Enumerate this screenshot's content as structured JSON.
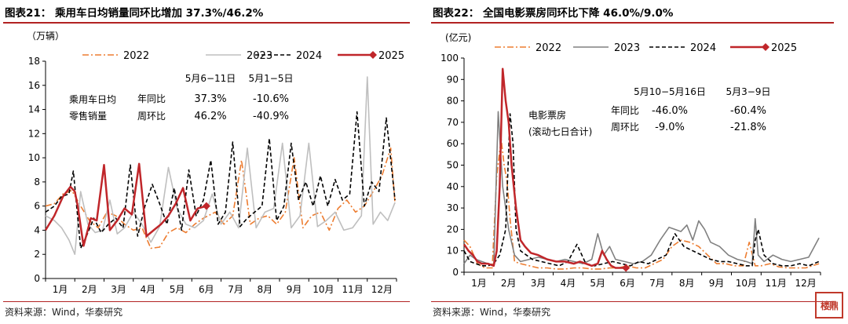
{
  "chart_data": [
    {
      "type": "line",
      "title": "图表21：  乘用车日均销量同环比增加 37.3%/46.2%",
      "unit_label": "（万辆）",
      "x_categories": [
        "1月",
        "2月",
        "3月",
        "4月",
        "5月",
        "6月",
        "7月",
        "8月",
        "9月",
        "10月",
        "11月",
        "12月"
      ],
      "ylim": [
        0,
        18
      ],
      "yticks": [
        0,
        2,
        4,
        6,
        8,
        10,
        12,
        14,
        16,
        18
      ],
      "legend_position": "top",
      "series": [
        {
          "name": "2022",
          "color": "#ed7d31",
          "dash": "dashdot",
          "x": [
            0,
            0.3,
            0.6,
            0.9,
            1.2,
            1.5,
            1.8,
            2.1,
            2.4,
            2.7,
            3.0,
            3.3,
            3.6,
            3.9,
            4.2,
            4.5,
            4.8,
            5.1,
            5.4,
            5.8,
            6.1,
            6.4,
            6.7,
            7.0,
            7.3,
            7.6,
            7.9,
            8.2,
            8.5,
            8.8,
            9.1,
            9.4,
            9.7,
            10.0,
            10.3,
            10.6,
            10.9,
            11.2,
            11.5,
            11.8,
            11.95
          ],
          "y": [
            6,
            6.2,
            7,
            7.3,
            6,
            4.8,
            4.2,
            5.5,
            5.2,
            4.5,
            4,
            4.2,
            2.5,
            2.6,
            3.8,
            4.2,
            3.8,
            4.5,
            5,
            5.5,
            4.5,
            5.2,
            9.8,
            4.5,
            5,
            5.2,
            4.5,
            5.5,
            10,
            4.2,
            5.2,
            5.5,
            4,
            5.8,
            6.5,
            5.5,
            6,
            7.2,
            8.5,
            10.8,
            6.2
          ]
        },
        {
          "name": "2023",
          "color": "#bfbfbf",
          "dash": "solid",
          "x": [
            0,
            0.3,
            0.55,
            0.8,
            1.0,
            1.2,
            1.45,
            1.7,
            1.95,
            2.2,
            2.45,
            2.7,
            3.0,
            3.3,
            3.6,
            3.9,
            4.2,
            4.5,
            4.8,
            5.1,
            5.4,
            5.7,
            6.0,
            6.3,
            6.6,
            6.9,
            7.2,
            7.5,
            7.8,
            8.1,
            8.4,
            8.7,
            9.0,
            9.3,
            9.6,
            9.9,
            10.2,
            10.5,
            10.8,
            11.0,
            11.2,
            11.45,
            11.7,
            11.95
          ],
          "y": [
            5.2,
            4.8,
            4.2,
            3.2,
            2,
            7.2,
            4.5,
            3.8,
            4,
            6.5,
            3.7,
            4.2,
            5.5,
            4.5,
            3,
            4.3,
            9.2,
            5.8,
            4.5,
            4.2,
            4.8,
            7,
            4.5,
            5.5,
            4.2,
            10.8,
            4.2,
            5.5,
            5.8,
            11.2,
            4.2,
            5.2,
            11.2,
            4.3,
            4.8,
            5.5,
            4,
            4.2,
            5.2,
            16.7,
            4.5,
            5.5,
            4.8,
            6.3
          ]
        },
        {
          "name": "2024",
          "color": "#000000",
          "dash": "dashed",
          "x": [
            0,
            0.3,
            0.55,
            0.8,
            0.95,
            1.2,
            1.4,
            1.65,
            1.9,
            2.15,
            2.4,
            2.65,
            2.9,
            3.15,
            3.4,
            3.65,
            3.9,
            4.15,
            4.4,
            4.65,
            4.9,
            5.15,
            5.4,
            5.65,
            5.9,
            6.15,
            6.4,
            6.65,
            6.9,
            7.15,
            7.4,
            7.65,
            7.9,
            8.15,
            8.4,
            8.65,
            8.9,
            9.15,
            9.4,
            9.65,
            9.9,
            10.15,
            10.4,
            10.65,
            10.9,
            11.15,
            11.4,
            11.65,
            11.95
          ],
          "y": [
            5.5,
            6,
            6.8,
            7,
            8.9,
            2.5,
            3.5,
            5,
            3.8,
            4.5,
            5,
            4.2,
            9.4,
            3.5,
            6,
            7.8,
            6.2,
            4.5,
            7.5,
            4,
            9,
            5.2,
            6.5,
            9.8,
            4.5,
            5.5,
            11.3,
            4.3,
            5,
            5.5,
            6,
            11.6,
            4.8,
            6,
            11.2,
            6.5,
            8,
            6,
            8.5,
            6,
            8.2,
            6.5,
            7,
            13.8,
            6,
            8,
            7.2,
            13.3,
            6.5
          ]
        },
        {
          "name": "2025",
          "color": "#c0262a",
          "dash": "solid",
          "x": [
            0,
            0.3,
            0.6,
            0.85,
            1.0,
            1.1,
            1.3,
            1.55,
            1.75,
            2.0,
            2.2,
            2.45,
            2.7,
            2.95,
            3.2,
            3.45,
            3.7,
            3.95,
            4.2,
            4.45,
            4.7,
            4.95,
            5.2,
            5.5
          ],
          "y": [
            4,
            5.2,
            6.8,
            7.6,
            7.2,
            6,
            2.7,
            5,
            4.8,
            9.4,
            4,
            4.8,
            5.8,
            5.3,
            9.5,
            3.5,
            4,
            4.5,
            5.2,
            6.2,
            7.5,
            4.8,
            5.8,
            6
          ]
        }
      ],
      "annotations": {
        "label_left": [
          "乘用车日均",
          "零售销量"
        ],
        "period_1": "5月6−11日",
        "period_2": "5月1−5日",
        "row_1_label": "年同比",
        "row_2_label": "周环比",
        "yoy_1": "37.3%",
        "yoy_2": "-10.6%",
        "wow_1": "46.2%",
        "wow_2": "-40.9%"
      },
      "source": "资料来源：Wind，华泰研究"
    },
    {
      "type": "line",
      "title": "图表22：  全国电影票房同环比下降 46.0%/9.0%",
      "unit_label": "(亿元)",
      "x_categories": [
        "1月",
        "2月",
        "3月",
        "4月",
        "5月",
        "6月",
        "7月",
        "8月",
        "9月",
        "10月",
        "11月",
        "12月"
      ],
      "ylim": [
        0,
        100
      ],
      "yticks": [
        0,
        10,
        20,
        30,
        40,
        50,
        60,
        70,
        80,
        90,
        100
      ],
      "legend_position": "top",
      "series": [
        {
          "name": "2022",
          "color": "#ed7d31",
          "dash": "dashdot",
          "x": [
            0,
            0.2,
            0.45,
            0.7,
            0.95,
            1.1,
            1.25,
            1.35,
            1.45,
            1.55,
            1.7,
            1.9,
            2.2,
            2.5,
            2.8,
            3.1,
            3.4,
            3.7,
            4.0,
            4.3,
            4.6,
            4.9,
            5.2,
            5.5,
            5.8,
            6.1,
            6.4,
            6.7,
            7.0,
            7.3,
            7.6,
            7.9,
            8.2,
            8.5,
            8.8,
            9.1,
            9.4,
            9.6,
            9.8,
            10.0,
            10.3,
            10.6,
            10.9,
            11.2,
            11.5,
            11.95
          ],
          "y": [
            15,
            12,
            4,
            2,
            2,
            45,
            62,
            50,
            42,
            25,
            5,
            4,
            3,
            2,
            2,
            1.5,
            1.5,
            2,
            2,
            1.5,
            1.5,
            2,
            2,
            3,
            2,
            2,
            4,
            6,
            12,
            15,
            14,
            12,
            8,
            4,
            4,
            3,
            3,
            14,
            3,
            3,
            4,
            2.5,
            2,
            2,
            2,
            4
          ]
        },
        {
          "name": "2023",
          "color": "#808080",
          "dash": "solid",
          "x": [
            0,
            0.2,
            0.4,
            0.6,
            0.8,
            1.0,
            1.15,
            1.3,
            1.5,
            1.7,
            1.9,
            2.2,
            2.5,
            2.8,
            3.1,
            3.4,
            3.7,
            4.0,
            4.3,
            4.5,
            4.7,
            4.9,
            5.1,
            5.4,
            5.7,
            6.0,
            6.3,
            6.6,
            6.9,
            7.1,
            7.3,
            7.5,
            7.7,
            7.9,
            8.1,
            8.3,
            8.6,
            8.9,
            9.2,
            9.5,
            9.7,
            9.8,
            9.9,
            10.1,
            10.4,
            10.7,
            11.0,
            11.3,
            11.6,
            11.95
          ],
          "y": [
            4,
            8,
            6,
            5,
            4,
            3,
            75,
            40,
            20,
            8,
            5,
            6,
            7,
            6,
            5,
            6,
            5,
            4,
            6,
            18,
            8,
            12,
            6,
            5,
            4,
            5,
            8,
            15,
            21,
            20,
            19,
            22,
            15,
            24,
            20,
            14,
            12,
            8,
            6,
            5,
            4,
            25,
            8,
            5,
            8,
            6,
            5,
            6,
            7,
            16
          ]
        },
        {
          "name": "2024",
          "color": "#000000",
          "dash": "dashed",
          "x": [
            0,
            0.2,
            0.4,
            0.6,
            0.8,
            1.0,
            1.2,
            1.4,
            1.55,
            1.65,
            1.75,
            1.9,
            2.1,
            2.3,
            2.6,
            2.9,
            3.2,
            3.5,
            3.8,
            4.1,
            4.4,
            4.7,
            5.0,
            5.3,
            5.6,
            5.9,
            6.2,
            6.5,
            6.8,
            7.1,
            7.4,
            7.7,
            8.0,
            8.3,
            8.6,
            8.9,
            9.2,
            9.5,
            9.7,
            9.8,
            9.9,
            10.1,
            10.4,
            10.7,
            11.0,
            11.3,
            11.6,
            11.95
          ],
          "y": [
            10,
            5,
            4,
            3,
            3,
            4,
            8,
            20,
            74,
            60,
            20,
            10,
            8,
            6,
            5,
            4,
            3,
            5,
            13,
            4,
            3,
            4,
            5,
            4,
            3,
            5,
            4,
            6,
            8,
            18,
            12,
            10,
            8,
            6,
            5,
            5,
            4,
            3,
            3,
            15,
            20,
            8,
            4,
            3,
            3,
            4,
            3,
            5
          ]
        },
        {
          "name": "2025",
          "color": "#c0262a",
          "dash": "solid",
          "x": [
            0,
            0.15,
            0.3,
            0.45,
            0.6,
            0.8,
            1.0,
            1.1,
            1.2,
            1.3,
            1.4,
            1.5,
            1.6,
            1.75,
            1.9,
            2.05,
            2.25,
            2.5,
            2.8,
            3.1,
            3.4,
            3.7,
            3.9,
            4.1,
            4.3,
            4.5,
            4.65,
            4.8,
            4.95,
            5.1,
            5.25,
            5.45
          ],
          "y": [
            13,
            10,
            8,
            5,
            4,
            4,
            3,
            10,
            40,
            95,
            80,
            70,
            50,
            30,
            15,
            12,
            9,
            8,
            6,
            5,
            5,
            4,
            5,
            4,
            3,
            4,
            10,
            6,
            3,
            2,
            2,
            2
          ]
        }
      ],
      "annotations": {
        "label_left": [
          "电影票房",
          "(滚动七日合计)"
        ],
        "period_1": "5月10−5月16日",
        "period_2": "5月3−9日",
        "row_1_label": "年同比",
        "row_2_label": "周环比",
        "yoy_1": "-46.0%",
        "yoy_2": "-60.4%",
        "wow_1": "-9.0%",
        "wow_2": "-21.8%"
      },
      "source": "资料来源：Wind，华泰研究"
    }
  ],
  "watermark_text": "楼鼎"
}
